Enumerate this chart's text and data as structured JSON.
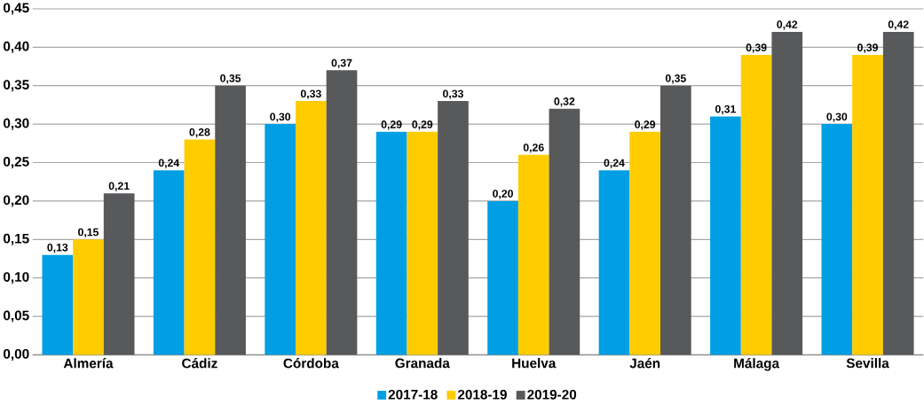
{
  "chart_data": {
    "type": "bar",
    "categories": [
      "Almería",
      "Cádiz",
      "Córdoba",
      "Granada",
      "Huelva",
      "Jaén",
      "Málaga",
      "Sevilla"
    ],
    "series": [
      {
        "name": "2017-18",
        "color": "#009fe3",
        "values": [
          0.13,
          0.24,
          0.3,
          0.29,
          0.2,
          0.24,
          0.31,
          0.3
        ],
        "value_labels": [
          "0,13",
          "0,24",
          "0,30",
          "0,29",
          "0,20",
          "0,24",
          "0,31",
          "0,30"
        ]
      },
      {
        "name": "2018-19",
        "color": "#ffcc00",
        "values": [
          0.15,
          0.28,
          0.33,
          0.29,
          0.26,
          0.29,
          0.39,
          0.39
        ],
        "value_labels": [
          "0,15",
          "0,28",
          "0,33",
          "0,29",
          "0,26",
          "0,29",
          "0,39",
          "0,39"
        ]
      },
      {
        "name": "2019-20",
        "color": "#58595b",
        "values": [
          0.21,
          0.35,
          0.37,
          0.33,
          0.32,
          0.35,
          0.42,
          0.42
        ],
        "value_labels": [
          "0,21",
          "0,35",
          "0,37",
          "0,33",
          "0,32",
          "0,35",
          "0,42",
          "0,42"
        ]
      }
    ],
    "ylim": [
      0,
      0.45
    ],
    "yticks": [
      {
        "value": 0,
        "label": "0,00"
      },
      {
        "value": 0.05,
        "label": "0,05"
      },
      {
        "value": 0.1,
        "label": "0,10"
      },
      {
        "value": 0.15,
        "label": "0,15"
      },
      {
        "value": 0.2,
        "label": "0,20"
      },
      {
        "value": 0.25,
        "label": "0,25"
      },
      {
        "value": 0.3,
        "label": "0,30"
      },
      {
        "value": 0.35,
        "label": "0,35"
      },
      {
        "value": 0.4,
        "label": "0,40"
      },
      {
        "value": 0.45,
        "label": "0,45"
      }
    ],
    "grid": "y",
    "legend": "bottom"
  }
}
